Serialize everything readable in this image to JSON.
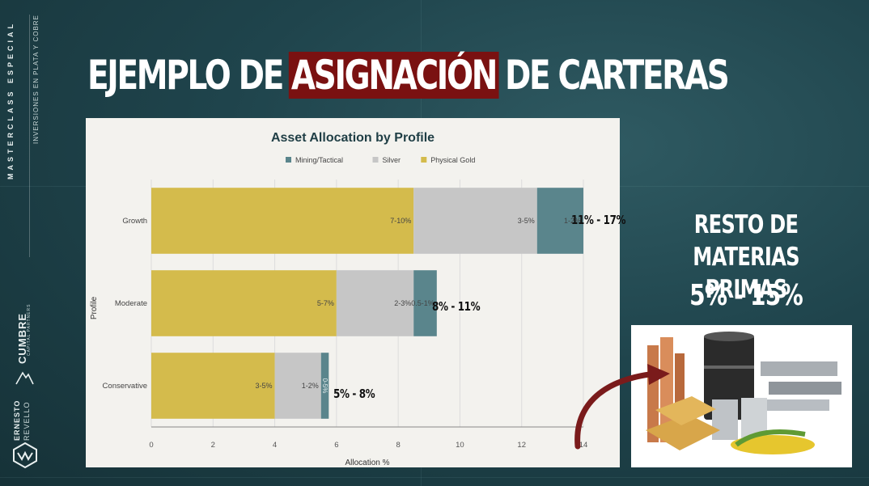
{
  "sidebar": {
    "series_label": "MASTERCLASS ESPECIAL",
    "subtitle": "INVERSIONES EN PLATA Y COBRE",
    "brand": "CUMBRE",
    "brand_sub": "CAPITAL PARTNERS",
    "author_first": "ERNESTO",
    "author_last": "REVELLO"
  },
  "slide": {
    "title_before": "EJEMPLO DE",
    "title_highlight": "ASIGNACIÓN",
    "title_after": "DE CARTERAS",
    "highlight_color": "#7a1111",
    "right_heading_line1": "RESTO DE",
    "right_heading_line2": "MATERIAS PRIMAS",
    "right_range": "5% - 15%",
    "ann_growth": "11% - 17%",
    "ann_moderate": "8% - 11%",
    "ann_conservative": "5% - 8%",
    "photo_icon": "commodities-photo-icon",
    "arrow_icon": "curved-arrow-icon"
  },
  "chart_data": {
    "type": "bar",
    "orientation": "horizontal",
    "stacked": true,
    "title": "Asset Allocation by Profile",
    "xlabel": "Allocation %",
    "ylabel": "Profile",
    "xlim": [
      0,
      14
    ],
    "xticks": [
      "0",
      "2",
      "4",
      "6",
      "8",
      "10",
      "12",
      "14"
    ],
    "categories": [
      "Growth",
      "Moderate",
      "Conservative"
    ],
    "legend_position": "top",
    "legend_order": [
      "Mining/Tactical",
      "Silver",
      "Physical Gold"
    ],
    "grid": true,
    "series": [
      {
        "name": "Physical Gold",
        "color": "#d4bb4c",
        "values": [
          8.5,
          6,
          4
        ],
        "labels": [
          "7-10%",
          "5-7%",
          "3-5%"
        ]
      },
      {
        "name": "Silver",
        "color": "#c6c6c6",
        "values": [
          4,
          2.5,
          1.5
        ],
        "labels": [
          "3-5%",
          "2-3%",
          "1-2%"
        ]
      },
      {
        "name": "Mining/Tactical",
        "color": "#5a858c",
        "values": [
          1.5,
          0.75,
          0.25
        ],
        "labels": [
          "1-2%",
          "0.5-1%",
          "0-5%"
        ]
      }
    ]
  }
}
